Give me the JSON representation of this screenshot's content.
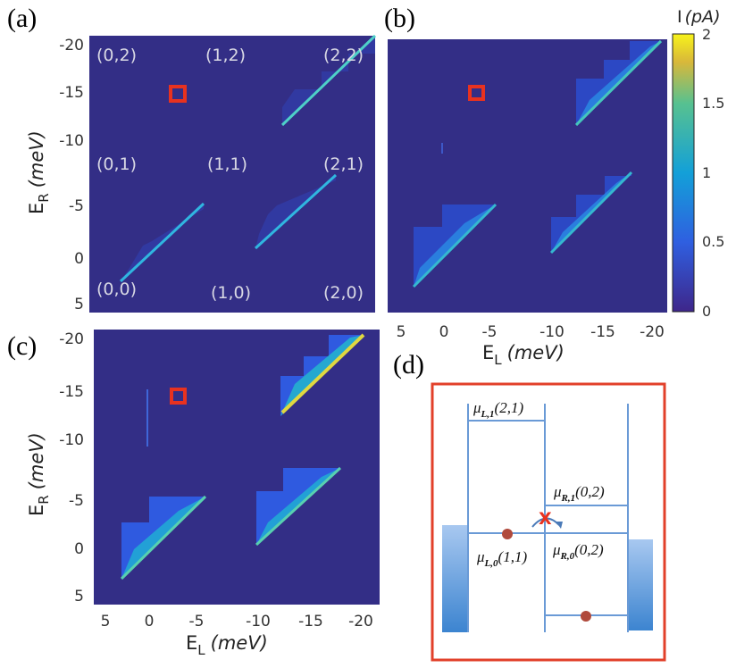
{
  "panel_labels": {
    "a": "(a)",
    "b": "(b)",
    "c": "(c)",
    "d": "(d)"
  },
  "axes": {
    "er_label_main": "E",
    "er_label_sub": "R",
    "er_label_unit": "(meV)",
    "el_label_main": "E",
    "el_label_sub": "L",
    "el_label_unit": "(meV)",
    "er_ticks": [
      "-20",
      "-15",
      "-10",
      "-5",
      "0",
      "5"
    ],
    "el_ticks": [
      "5",
      "0",
      "-5",
      "-10",
      "-15",
      "-20"
    ]
  },
  "charge_states": {
    "top": [
      "(0,2)",
      "(1,2)",
      "(2,2)"
    ],
    "mid": [
      "(0,1)",
      "(1,1)",
      "(2,1)"
    ],
    "bottom": [
      "(0,0)",
      "(1,0)",
      "(2,0)"
    ]
  },
  "colorbar": {
    "title_main": "I",
    "title_unit": "(pA)",
    "ticks": [
      "2",
      "1.5",
      "1",
      "0.5",
      "0"
    ]
  },
  "diagram": {
    "mu_L1_sym": "μ",
    "mu_L1_sub": "L,1",
    "mu_L1_arg": "(2,1)",
    "mu_R1_sym": "μ",
    "mu_R1_sub": "R,1",
    "mu_R1_arg": "(0,2)",
    "mu_L0_sym": "μ",
    "mu_L0_sub": "L,0",
    "mu_L0_arg": "(1,1)",
    "mu_R0_sym": "μ",
    "mu_R0_sub": "R,0",
    "mu_R0_arg": "(0,2)",
    "blocked_mark": "X"
  },
  "colors": {
    "plot_bg": "#332e86",
    "tri_outer": "#2b4ccc",
    "tri_mid": "#1f7fe0",
    "tri_edge": "#35c0c8",
    "hot_line": "#e8e040",
    "marker": "#e8321f",
    "frame": "#e2402a",
    "level_line": "#6a9ad6",
    "electron": "#b04a3c",
    "label_gray": "#d8d8e4"
  },
  "chart_data": {
    "type": "heatmap",
    "x_label": "E_L (meV)",
    "y_label": "E_R (meV)",
    "x_range": [
      7,
      -21
    ],
    "y_range": [
      6,
      -21
    ],
    "z_label": "I (pA)",
    "z_range": [
      0,
      2
    ],
    "panels": [
      "(a)",
      "(b)",
      "(c)"
    ]
  }
}
